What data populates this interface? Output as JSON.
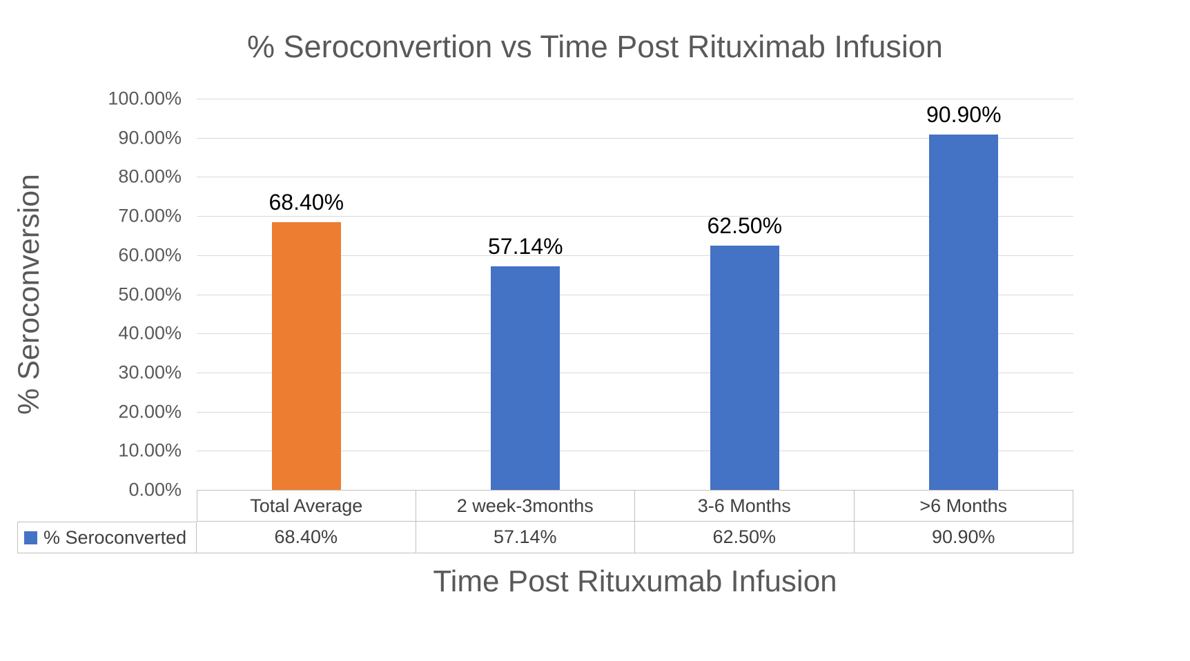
{
  "chart_data": {
    "type": "bar",
    "title": "% Seroconvertion vs Time Post Rituximab Infusion",
    "xlabel": "Time Post Rituxumab Infusion",
    "ylabel": "% Seroconversion",
    "categories": [
      "Total Average",
      "2 week-3months",
      "3-6 Months",
      ">6 Months"
    ],
    "series": [
      {
        "name": "% Seroconverted",
        "values": [
          68.4,
          57.14,
          62.5,
          90.9
        ]
      }
    ],
    "value_labels": [
      "68.40%",
      "57.14%",
      "62.50%",
      "90.90%"
    ],
    "table_values": [
      "68.40%",
      "57.14%",
      "62.50%",
      "90.90%"
    ],
    "ylim": [
      0,
      100
    ],
    "ytick_step": 10,
    "ytick_labels_top_down": [
      "100.00%",
      "90.00%",
      "80.00%",
      "70.00%",
      "60.00%",
      "50.00%",
      "40.00%",
      "30.00%",
      "20.00%",
      "10.00%",
      "0.00%"
    ],
    "grid": true,
    "legend_position": "table-left",
    "bar_colors": [
      "#ED7D31",
      "#4472C4",
      "#4472C4",
      "#4472C4"
    ],
    "legend_marker_color": "#4472C4",
    "gridline_color": "#D9D9D9",
    "table_border_color": "#BFBFBF",
    "axis_text_color": "#595959"
  }
}
